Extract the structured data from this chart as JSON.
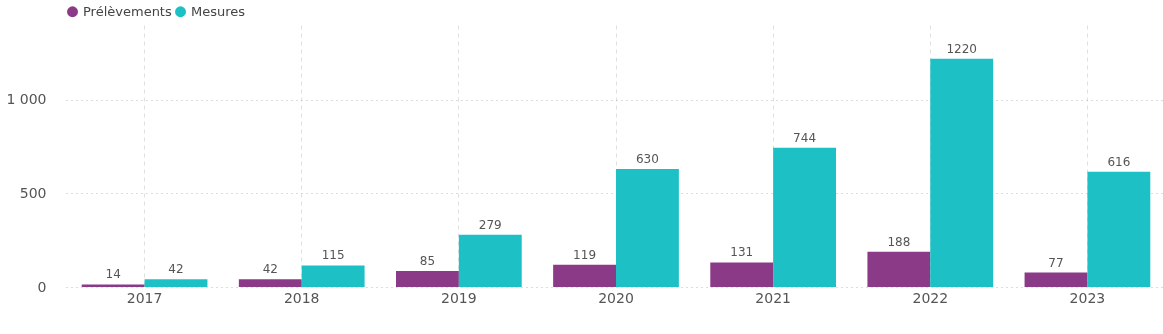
{
  "chart_data": {
    "type": "bar",
    "categories": [
      "2017",
      "2018",
      "2019",
      "2020",
      "2021",
      "2022",
      "2023"
    ],
    "series": [
      {
        "name": "Prélèvements",
        "color": "#8b3a87",
        "values": [
          14,
          42,
          85,
          119,
          131,
          188,
          77
        ]
      },
      {
        "name": "Mesures",
        "color": "#1cc0c5",
        "values": [
          42,
          115,
          279,
          630,
          744,
          1220,
          616
        ]
      }
    ],
    "ylim": [
      0,
      1400
    ],
    "yticks": [
      0,
      500,
      {
        "value": 1000,
        "label": "1 000"
      }
    ],
    "grid": true,
    "legend": "top left",
    "data_labels": true
  }
}
